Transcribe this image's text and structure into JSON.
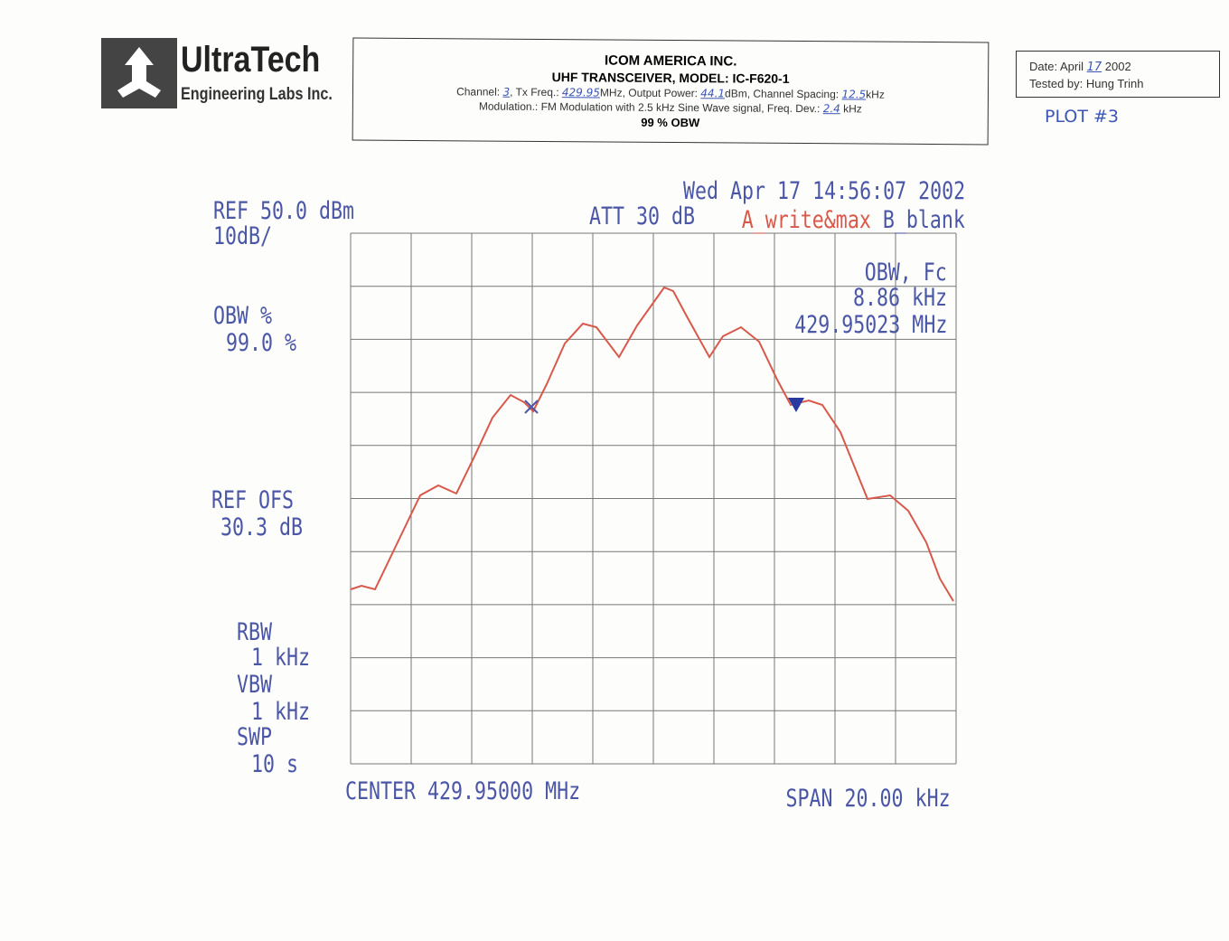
{
  "logo": {
    "name": "UltraTech",
    "subtitle": "Engineering Labs Inc."
  },
  "header": {
    "company": "ICOM AMERICA INC.",
    "model": "UHF TRANSCEIVER, MODEL: IC-F620-1",
    "channel_label": "Channel:",
    "channel": "3",
    "freq_label": ", Tx Freq.:",
    "freq": "429.95",
    "power_label": "MHz, Output Power:",
    "power": "44.1",
    "spacing_label": "dBm, Channel Spacing:",
    "spacing": "12.5",
    "spacing_unit": "kHz",
    "modulation_label": "Modulation.: FM Modulation with 2.5 kHz Sine Wave signal, Freq. Dev.:",
    "deviation": "2.4",
    "deviation_unit": "kHz",
    "test": "99 % OBW"
  },
  "test_info": {
    "date_label": "Date: April",
    "day": "17",
    "year": "2002",
    "tested_label": "Tested by:",
    "tester": "Hung Trinh",
    "plot": "PLOT #3"
  },
  "analyzer": {
    "ref": "REF 50.0 dBm",
    "scale": "10dB/",
    "att": "ATT 30 dB",
    "timestamp": "Wed Apr 17 14:56:07 2002",
    "trace_a": "A_write&max",
    "trace_b": "B_blank",
    "obw_fc": "OBW, Fc",
    "obw_value": "8.86 kHz",
    "fc_value": "429.95023 MHz",
    "obw_pct_label": "OBW %",
    "obw_pct": "99.0 %",
    "ref_ofs_label": "REF OFS",
    "ref_ofs": "30.3 dB",
    "rbw_label": "RBW",
    "rbw": "1 kHz",
    "vbw_label": "VBW",
    "vbw": "1 kHz",
    "swp_label": "SWP",
    "swp": "10 s",
    "center": "CENTER 429.95000 MHz",
    "span": "SPAN 20.00 kHz"
  }
}
